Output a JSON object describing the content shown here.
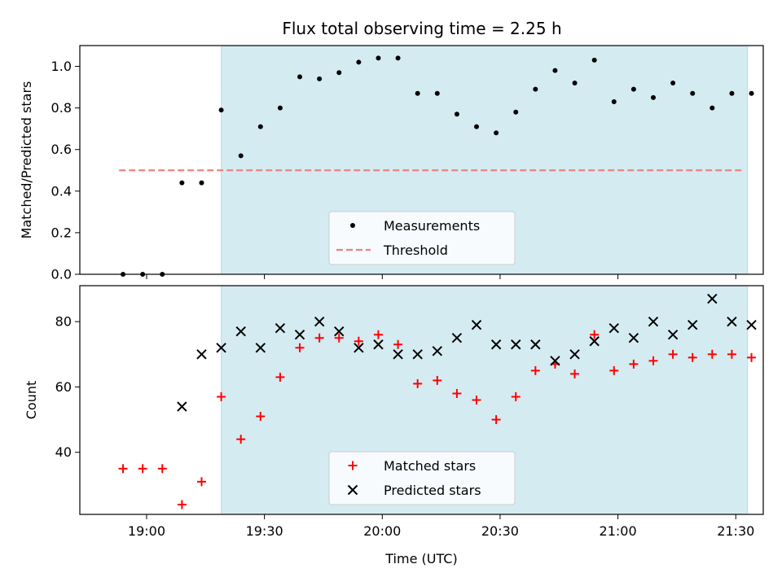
{
  "chart_data": [
    {
      "type": "scatter",
      "title": "Flux total observing time = 2.25 h",
      "xlabel": "",
      "ylabel": "Matched/Predicted stars",
      "ylim": [
        0,
        1.1
      ],
      "yticks": [
        0.0,
        0.2,
        0.4,
        0.6,
        0.8,
        1.0
      ],
      "ytick_labels": [
        "0.0",
        "0.2",
        "0.4",
        "0.6",
        "0.8",
        "1.0"
      ],
      "observing_window": [
        "19:19",
        "21:33"
      ],
      "window_color": "#d5ebf2",
      "legend_position": "bottom-center",
      "series": [
        {
          "name": "Measurements",
          "marker": "dot",
          "color": "#000000",
          "x": [
            "18:54",
            "18:59",
            "19:04",
            "19:09",
            "19:14",
            "19:19",
            "19:24",
            "19:29",
            "19:34",
            "19:39",
            "19:44",
            "19:49",
            "19:54",
            "19:59",
            "20:04",
            "20:09",
            "20:14",
            "20:19",
            "20:24",
            "20:29",
            "20:34",
            "20:39",
            "20:44",
            "20:49",
            "20:54",
            "20:59",
            "21:04",
            "21:09",
            "21:14",
            "21:19",
            "21:24",
            "21:29",
            "21:34"
          ],
          "y": [
            0.0,
            0.0,
            0.0,
            0.44,
            0.44,
            0.79,
            0.57,
            0.71,
            0.8,
            0.95,
            0.94,
            0.97,
            1.02,
            1.04,
            1.04,
            0.87,
            0.87,
            0.77,
            0.71,
            0.68,
            0.78,
            0.89,
            0.98,
            0.92,
            1.03,
            0.83,
            0.89,
            0.85,
            0.92,
            0.87,
            0.8,
            0.87,
            0.87
          ]
        },
        {
          "name": "Threshold",
          "marker": "dashed-line",
          "color": "#f08080",
          "x": [
            "18:53",
            "21:32"
          ],
          "y": [
            0.5,
            0.5
          ]
        }
      ]
    },
    {
      "type": "scatter",
      "title": "",
      "xlabel": "Time (UTC)",
      "ylabel": "Count",
      "ylim": [
        21,
        91
      ],
      "yticks": [
        40,
        60,
        80
      ],
      "ytick_labels": [
        "40",
        "60",
        "80"
      ],
      "xlim": [
        "18:43",
        "21:37"
      ],
      "xticks": [
        "19:00",
        "19:30",
        "20:00",
        "20:30",
        "21:00",
        "21:30"
      ],
      "xtick_labels": [
        "19:00",
        "19:30",
        "20:00",
        "20:30",
        "21:00",
        "21:30"
      ],
      "observing_window": [
        "19:19",
        "21:33"
      ],
      "window_color": "#d5ebf2",
      "legend_position": "bottom-center",
      "series": [
        {
          "name": "Matched stars",
          "marker": "plus",
          "color": "#ff0000",
          "x": [
            "18:54",
            "18:59",
            "19:04",
            "19:09",
            "19:14",
            "19:19",
            "19:24",
            "19:29",
            "19:34",
            "19:39",
            "19:44",
            "19:49",
            "19:54",
            "19:59",
            "20:04",
            "20:09",
            "20:14",
            "20:19",
            "20:24",
            "20:29",
            "20:34",
            "20:39",
            "20:44",
            "20:49",
            "20:54",
            "20:59",
            "21:04",
            "21:09",
            "21:14",
            "21:19",
            "21:24",
            "21:29",
            "21:34"
          ],
          "y": [
            35,
            35,
            35,
            24,
            31,
            57,
            44,
            51,
            63,
            72,
            75,
            75,
            74,
            76,
            73,
            61,
            62,
            58,
            56,
            50,
            57,
            65,
            67,
            64,
            76,
            65,
            67,
            68,
            70,
            69,
            70,
            70,
            69
          ]
        },
        {
          "name": "Predicted stars",
          "marker": "x",
          "color": "#000000",
          "x": [
            "19:09",
            "19:14",
            "19:19",
            "19:24",
            "19:29",
            "19:34",
            "19:39",
            "19:44",
            "19:49",
            "19:54",
            "19:59",
            "20:04",
            "20:09",
            "20:14",
            "20:19",
            "20:24",
            "20:29",
            "20:34",
            "20:39",
            "20:44",
            "20:49",
            "20:54",
            "20:59",
            "21:04",
            "21:09",
            "21:14",
            "21:19",
            "21:24",
            "21:29",
            "21:34"
          ],
          "y": [
            54,
            70,
            72,
            77,
            72,
            78,
            76,
            80,
            77,
            72,
            73,
            70,
            70,
            71,
            75,
            79,
            73,
            73,
            73,
            68,
            70,
            74,
            78,
            75,
            80,
            76,
            79,
            87,
            80,
            79
          ]
        }
      ]
    }
  ]
}
